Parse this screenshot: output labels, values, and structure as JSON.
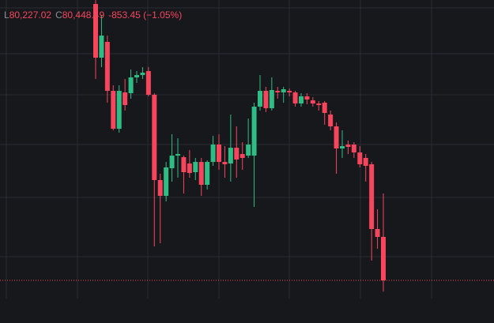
{
  "chart_data": {
    "type": "candlestick",
    "legend": {
      "low_label": "L",
      "low": "80,227.02",
      "close_label": "C",
      "close": "80,448.49",
      "change": "-853.45 (−1.05%)"
    },
    "ylim": [
      80092,
      85951
    ],
    "up_color": "#2ebd85",
    "down_color": "#f6465d",
    "label_color": "#8a8d96",
    "open": [
      85873,
      84819,
      85129,
      84168,
      83424,
      84137,
      84122,
      84432,
      84478,
      84556,
      84091,
      82417,
      82107,
      82649,
      82897,
      82866,
      82742,
      82572,
      82773,
      82324,
      82773,
      83114,
      82773,
      82742,
      83052,
      82928,
      82897,
      82897,
      83858,
      84168,
      83827,
      84168,
      84137,
      84168,
      84137,
      83920,
      84060,
      83982,
      83920,
      83936,
      83703,
      83471,
      83037,
      83114,
      83114,
      82959,
      82851,
      82727,
      81456,
      81301.94
    ],
    "high": [
      85951,
      85641,
      85253,
      84277,
      84277,
      84401,
      84587,
      84556,
      84633,
      84633,
      84122,
      82541,
      82773,
      83316,
      83238,
      82897,
      83006,
      82851,
      82851,
      82804,
      83285,
      83316,
      83083,
      83703,
      83471,
      83161,
      83626,
      83936,
      84478,
      84246,
      84432,
      84246,
      84246,
      84215,
      84168,
      84122,
      84122,
      84044,
      83967,
      83967,
      83781,
      83548,
      83393,
      83192,
      83161,
      83083,
      82928,
      82773,
      81843,
      82153
    ],
    "low": [
      84401,
      84633,
      83936,
      83393,
      83347,
      83781,
      84013,
      84323,
      84401,
      84060,
      81115,
      81177,
      81998,
      82386,
      82463,
      82153,
      82463,
      82417,
      82107,
      82231,
      82696,
      82618,
      82463,
      82386,
      82463,
      82618,
      82851,
      81890,
      83781,
      83750,
      83781,
      84013,
      83936,
      84060,
      83858,
      83858,
      83905,
      83858,
      83781,
      83502,
      83393,
      82541,
      82851,
      82928,
      82851,
      82665,
      82386,
      80836,
      81068,
      80227.02
    ],
    "close": [
      84819,
      85253,
      84168,
      83424,
      84168,
      83889,
      84432,
      84478,
      84525,
      84091,
      82417,
      82107,
      82665,
      82897,
      82928,
      82572,
      82556,
      82773,
      82324,
      82773,
      83114,
      82773,
      82727,
      83052,
      82820,
      82851,
      83114,
      83858,
      84168,
      83827,
      84184,
      84137,
      84199,
      84137,
      83920,
      84060,
      83998,
      83920,
      83889,
      83734,
      83471,
      83037,
      83083,
      83068,
      82959,
      82727,
      82696,
      81456,
      81301,
      80448.49
    ]
  }
}
